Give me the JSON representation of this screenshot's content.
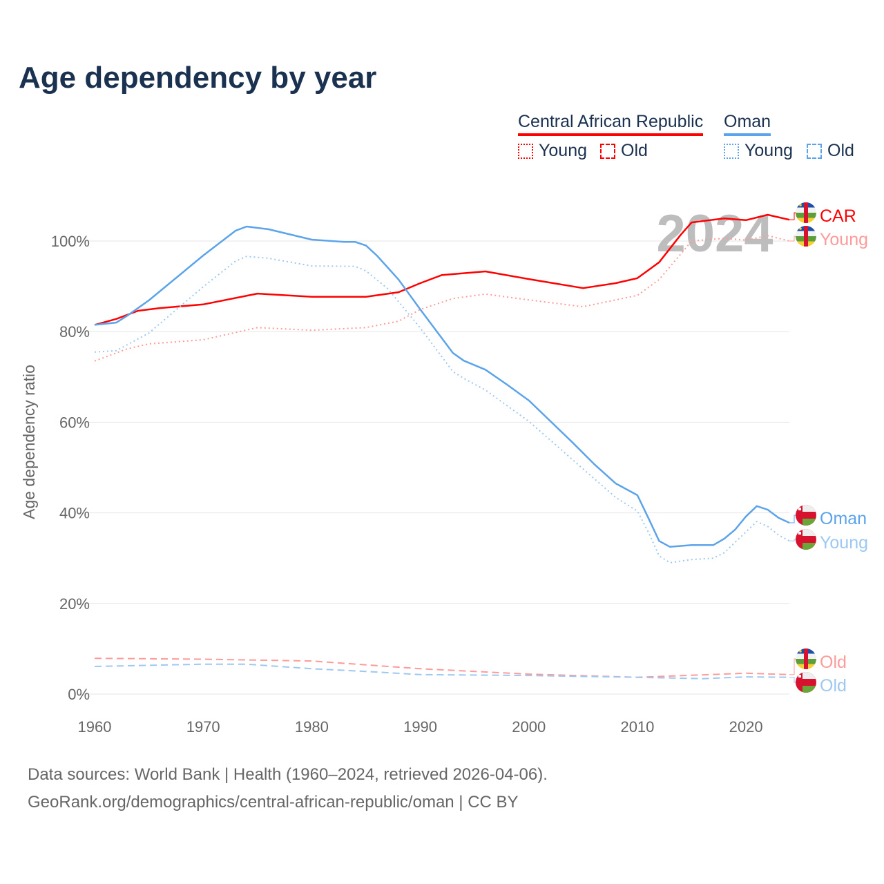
{
  "title": "Age dependency by year",
  "legend": {
    "countries": [
      {
        "name": "Central African Republic",
        "color": "#ff0000"
      },
      {
        "name": "Oman",
        "color": "#5ba3ea"
      }
    ],
    "young_label": "Young",
    "old_label": "Old"
  },
  "watermark_year": "2024",
  "source_line1": "Data sources: World Bank | Health (1960–2024, retrieved 2026-04-06).",
  "source_line2": "GeoRank.org/demographics/central-african-republic/oman | CC BY",
  "chart_data": {
    "type": "line",
    "title": "Age dependency by year",
    "xlabel": "",
    "ylabel": "Age dependency ratio",
    "xlim": [
      1960,
      2024
    ],
    "ylim": [
      0,
      110
    ],
    "x_ticks": [
      "1960",
      "1970",
      "1980",
      "1990",
      "2000",
      "2010",
      "2020"
    ],
    "y_ticks": [
      "0%",
      "20%",
      "40%",
      "60%",
      "80%",
      "100%"
    ],
    "grid": true,
    "series": [
      {
        "name": "Central African Republic",
        "end_label": "CAR",
        "style": "solid",
        "color": "#ff0000",
        "flag": "car",
        "points": [
          [
            1960,
            81.5
          ],
          [
            1962,
            82.8
          ],
          [
            1964,
            84.6
          ],
          [
            1966,
            85.2
          ],
          [
            1970,
            86
          ],
          [
            1975,
            88.4
          ],
          [
            1980,
            87.7
          ],
          [
            1985,
            87.7
          ],
          [
            1988,
            88.7
          ],
          [
            1990,
            90.7
          ],
          [
            1992,
            92.5
          ],
          [
            1996,
            93.3
          ],
          [
            2000,
            91.6
          ],
          [
            2005,
            89.6
          ],
          [
            2008,
            90.7
          ],
          [
            2010,
            91.8
          ],
          [
            2012,
            95.3
          ],
          [
            2014,
            101.4
          ],
          [
            2015,
            104.1
          ],
          [
            2018,
            105
          ],
          [
            2020,
            104.6
          ],
          [
            2022,
            105.8
          ],
          [
            2024,
            104.7
          ]
        ]
      },
      {
        "name": "Central African Republic Young",
        "end_label": "Young",
        "style": "dotted",
        "color": "#ff9a9a",
        "flag": "car",
        "points": [
          [
            1960,
            73.5
          ],
          [
            1963,
            76.2
          ],
          [
            1965,
            77.3
          ],
          [
            1970,
            78.2
          ],
          [
            1975,
            80.9
          ],
          [
            1980,
            80.3
          ],
          [
            1985,
            80.9
          ],
          [
            1988,
            82.3
          ],
          [
            1990,
            84.9
          ],
          [
            1993,
            87.3
          ],
          [
            1996,
            88.3
          ],
          [
            2000,
            87
          ],
          [
            2005,
            85.5
          ],
          [
            2010,
            88
          ],
          [
            2012,
            91.5
          ],
          [
            2015,
            100
          ],
          [
            2018,
            100.6
          ],
          [
            2020,
            100.2
          ],
          [
            2022,
            101.2
          ],
          [
            2024,
            100
          ]
        ]
      },
      {
        "name": "Central African Republic Old",
        "end_label": "Old",
        "style": "dashed",
        "color": "#ff9a9a",
        "flag": "car",
        "points": [
          [
            1960,
            7.9
          ],
          [
            1970,
            7.7
          ],
          [
            1980,
            7.3
          ],
          [
            1990,
            5.6
          ],
          [
            2000,
            4.4
          ],
          [
            2010,
            3.7
          ],
          [
            2020,
            4.6
          ],
          [
            2024,
            4.3
          ]
        ]
      },
      {
        "name": "Oman",
        "end_label": "Oman",
        "style": "solid",
        "color": "#5ba3ea",
        "flag": "oman",
        "points": [
          [
            1960,
            81.5
          ],
          [
            1962,
            82
          ],
          [
            1963,
            83.5
          ],
          [
            1965,
            86.9
          ],
          [
            1970,
            96.8
          ],
          [
            1973,
            102.3
          ],
          [
            1974,
            103.2
          ],
          [
            1976,
            102.6
          ],
          [
            1980,
            100.3
          ],
          [
            1983,
            99.8
          ],
          [
            1984,
            99.8
          ],
          [
            1985,
            99
          ],
          [
            1986,
            96.8
          ],
          [
            1988,
            91.5
          ],
          [
            1990,
            84.9
          ],
          [
            1992,
            78.5
          ],
          [
            1993,
            75.3
          ],
          [
            1994,
            73.6
          ],
          [
            1996,
            71.6
          ],
          [
            1998,
            68.3
          ],
          [
            2000,
            64.8
          ],
          [
            2004,
            55.6
          ],
          [
            2006,
            50.8
          ],
          [
            2008,
            46.5
          ],
          [
            2010,
            43.9
          ],
          [
            2011,
            38.9
          ],
          [
            2012,
            33.8
          ],
          [
            2013,
            32.5
          ],
          [
            2015,
            32.9
          ],
          [
            2017,
            32.9
          ],
          [
            2018,
            34.3
          ],
          [
            2019,
            36.3
          ],
          [
            2020,
            39.2
          ],
          [
            2021,
            41.5
          ],
          [
            2022,
            40.7
          ],
          [
            2023,
            38.9
          ],
          [
            2024,
            37.8
          ]
        ]
      },
      {
        "name": "Oman Young",
        "end_label": "Young",
        "style": "dotted",
        "color": "#9cc8f2",
        "flag": "oman",
        "points": [
          [
            1960,
            75.5
          ],
          [
            1962,
            75.8
          ],
          [
            1965,
            79.7
          ],
          [
            1970,
            89.9
          ],
          [
            1973,
            95.6
          ],
          [
            1974,
            96.6
          ],
          [
            1976,
            96.2
          ],
          [
            1980,
            94.5
          ],
          [
            1984,
            94.4
          ],
          [
            1985,
            93.4
          ],
          [
            1987,
            89.5
          ],
          [
            1990,
            80.8
          ],
          [
            1993,
            71.2
          ],
          [
            1994,
            69.7
          ],
          [
            1996,
            67.1
          ],
          [
            2000,
            60.2
          ],
          [
            2004,
            51.8
          ],
          [
            2008,
            43.4
          ],
          [
            2010,
            40.4
          ],
          [
            2011,
            35.8
          ],
          [
            2012,
            30.5
          ],
          [
            2013,
            29
          ],
          [
            2015,
            29.7
          ],
          [
            2017,
            30
          ],
          [
            2018,
            31.2
          ],
          [
            2020,
            35.8
          ],
          [
            2021,
            38.1
          ],
          [
            2022,
            37
          ],
          [
            2023,
            35.1
          ],
          [
            2024,
            33.8
          ]
        ]
      },
      {
        "name": "Oman Old",
        "end_label": "Old",
        "style": "dashed",
        "color": "#9cc8f2",
        "flag": "oman",
        "points": [
          [
            1960,
            6.1
          ],
          [
            1970,
            6.6
          ],
          [
            1974,
            6.6
          ],
          [
            1980,
            5.6
          ],
          [
            1985,
            5
          ],
          [
            1990,
            4.3
          ],
          [
            2000,
            4.1
          ],
          [
            2010,
            3.7
          ],
          [
            2016,
            3.4
          ],
          [
            2020,
            3.8
          ],
          [
            2024,
            3.7
          ]
        ]
      }
    ]
  }
}
